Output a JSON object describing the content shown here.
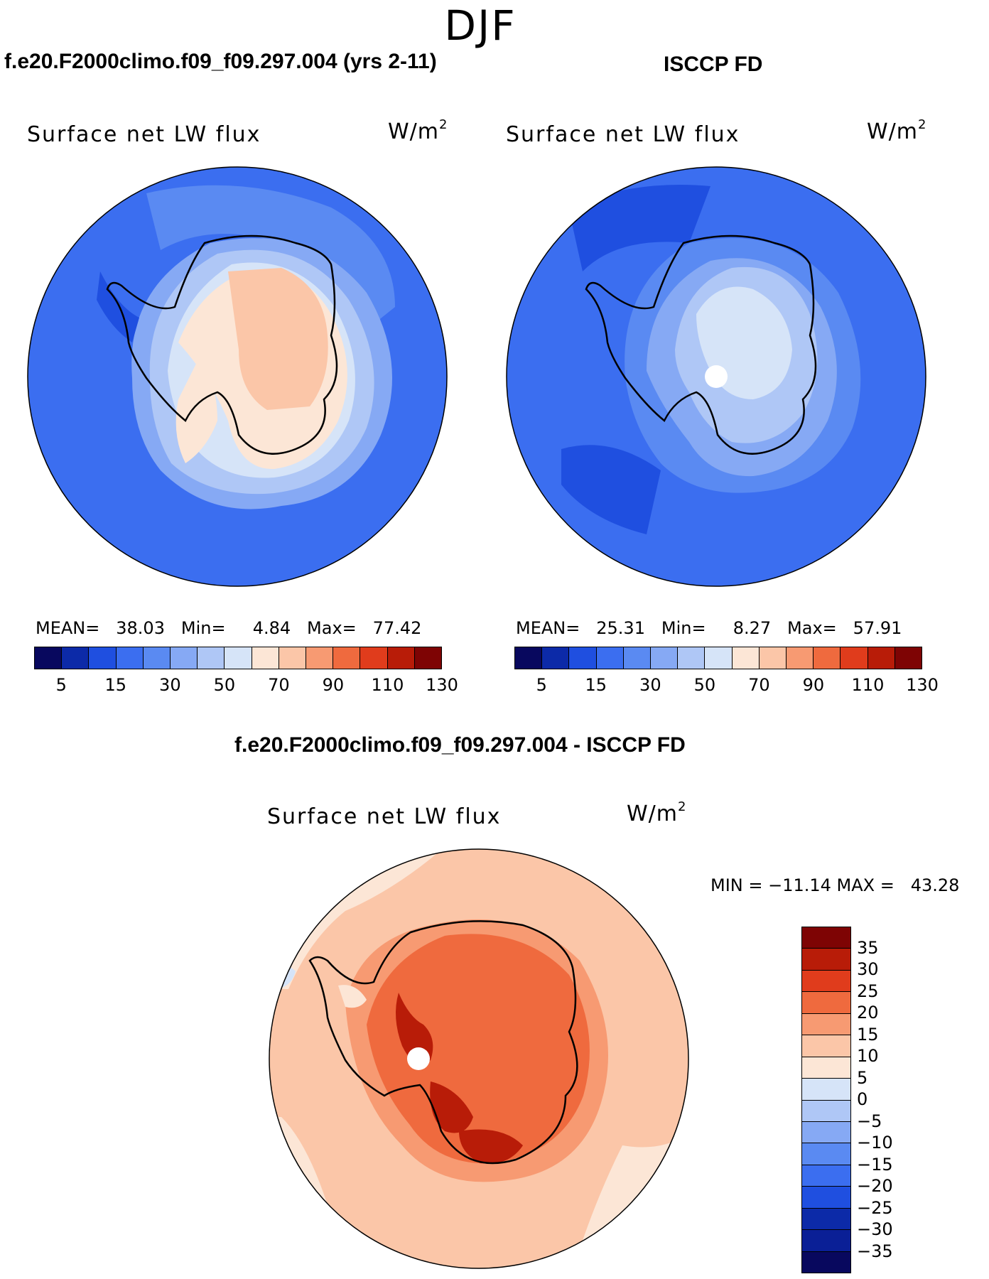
{
  "season": "DJF",
  "panels": {
    "model": {
      "title": "f.e20.F2000climo.f09_f09.297.004 (yrs 2-11)",
      "subtitle": "Surface net LW flux",
      "units": "W/m",
      "units_exp": "2",
      "mean_label": "MEAN=",
      "mean": "38.03",
      "min_label": "Min=",
      "min": "4.84",
      "max_label": "Max=",
      "max": "77.42"
    },
    "obs": {
      "title": "ISCCP FD",
      "subtitle": "Surface net LW flux",
      "units": "W/m",
      "units_exp": "2",
      "mean_label": "MEAN=",
      "mean": "25.31",
      "min_label": "Min=",
      "min": "8.27",
      "max_label": "Max=",
      "max": "57.91"
    },
    "diff": {
      "title": "f.e20.F2000climo.f09_f09.297.004 - ISCCP FD",
      "subtitle": "Surface net LW flux",
      "units": "W/m",
      "units_exp": "2",
      "minmax_text": "MIN = −11.14 MAX =   43.28"
    }
  },
  "abs_colorbar": {
    "colors": [
      "#08085e",
      "#0c2aa8",
      "#1f4fe0",
      "#3b6ef0",
      "#5a8af2",
      "#86a9f4",
      "#afc7f6",
      "#d6e4f8",
      "#fce6d6",
      "#fbc6a8",
      "#f79a72",
      "#ef6a3e",
      "#e03c1c",
      "#b81c08",
      "#7e0404"
    ],
    "tick_labels": [
      "5",
      "15",
      "30",
      "50",
      "70",
      "90",
      "110",
      "130"
    ]
  },
  "diff_colorbar": {
    "colors": [
      "#7e0404",
      "#b81c08",
      "#e03c1c",
      "#ef6a3e",
      "#f79a72",
      "#fbc6a8",
      "#fce6d6",
      "#d6e4f8",
      "#afc7f6",
      "#86a9f4",
      "#5a8af2",
      "#3b6ef0",
      "#1f4fe0",
      "#0c2aa8",
      "#0a1f96",
      "#08085e"
    ],
    "tick_labels": [
      "35",
      "30",
      "25",
      "20",
      "15",
      "10",
      "5",
      "0",
      "−5",
      "−10",
      "−15",
      "−20",
      "−25",
      "−30",
      "−35"
    ]
  }
}
